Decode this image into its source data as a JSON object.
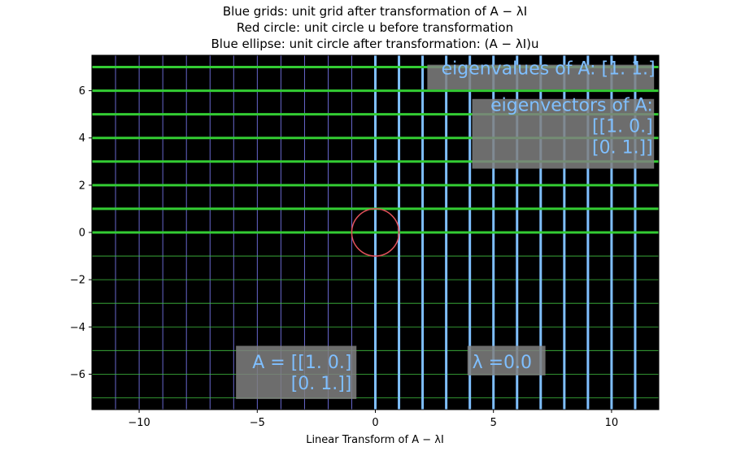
{
  "chart_data": {
    "type": "line",
    "title_lines": [
      "Blue grids: unit grid after transformation of A − λI",
      "Red circle: unit circle u before transformation",
      "Blue ellipse: unit circle after transformation: (A − λI)u"
    ],
    "xlabel": "Linear Transform of A − λI",
    "ylabel": "",
    "xlim": [
      -12,
      12
    ],
    "ylim": [
      -7.5,
      7.5
    ],
    "x_ticks": [
      -10,
      -5,
      0,
      5,
      10
    ],
    "x_tick_labels": [
      "−10",
      "−5",
      "0",
      "5",
      "10"
    ],
    "y_ticks": [
      -6,
      -4,
      -2,
      0,
      2,
      4,
      6
    ],
    "y_tick_labels": [
      "−6",
      "−4",
      "−2",
      "0",
      "2",
      "4",
      "6"
    ],
    "background": "#000000",
    "thin_grid": {
      "vertical_x": [
        -11,
        -10,
        -9,
        -8,
        -7,
        -6,
        -5,
        -4,
        -3,
        -2,
        -1,
        0,
        1,
        2,
        3,
        4,
        5,
        6,
        7,
        8,
        9,
        10,
        11
      ],
      "horizontal_y": [
        -7,
        -6,
        -5,
        -4,
        -3,
        -2,
        -1,
        0,
        1,
        2,
        3,
        4,
        5,
        6,
        7
      ],
      "vertical_color": "#8080ff",
      "horizontal_color": "#40c040"
    },
    "transformed_vertical_lines_x": [
      0,
      1,
      2,
      3,
      4,
      5,
      6,
      7,
      8,
      9,
      10,
      11
    ],
    "transformed_vertical_color": "#7fbfff",
    "transformed_horizontal_lines_y": [
      0,
      1,
      2,
      3,
      4,
      5,
      6,
      7
    ],
    "transformed_horizontal_color": "#33cc33",
    "unit_circle": {
      "cx": 0,
      "cy": 0,
      "r": 1,
      "color": "#e0505a"
    },
    "annotations": [
      {
        "name": "eigenvalues-box",
        "lines": [
          "eigenvalues of A: [1. 1.]"
        ],
        "anchor": "end",
        "x": 11.85,
        "y": 6.7,
        "box_x0": 2.2,
        "box_x1": 11.8,
        "box_y0": 6.05,
        "box_y1": 7.1
      },
      {
        "name": "eigenvectors-box",
        "lines": [
          "eigenvectors of A:",
          "[[1. 0.]",
          "[0. 1.]]"
        ],
        "anchor": "end",
        "x": 11.75,
        "y": 5.15,
        "box_x0": 4.1,
        "box_x1": 11.8,
        "box_y0": 2.7,
        "box_y1": 5.65
      },
      {
        "name": "matrix-a-box",
        "lines": [
          "A = [[1. 0.]",
          "[0. 1.]]"
        ],
        "anchor": "end",
        "x": -1.0,
        "y": -5.75,
        "box_x0": -5.9,
        "box_x1": -0.8,
        "box_y0": -7.05,
        "box_y1": -4.8
      },
      {
        "name": "lambda-box",
        "lines": [
          "λ =0.0"
        ],
        "anchor": "start",
        "x": 4.1,
        "y": -5.75,
        "box_x0": 3.9,
        "box_x1": 7.2,
        "box_y0": -6.05,
        "box_y1": -4.8
      }
    ],
    "annotation_box_color": "#808080",
    "annotation_text_color": "#7fbfff"
  }
}
